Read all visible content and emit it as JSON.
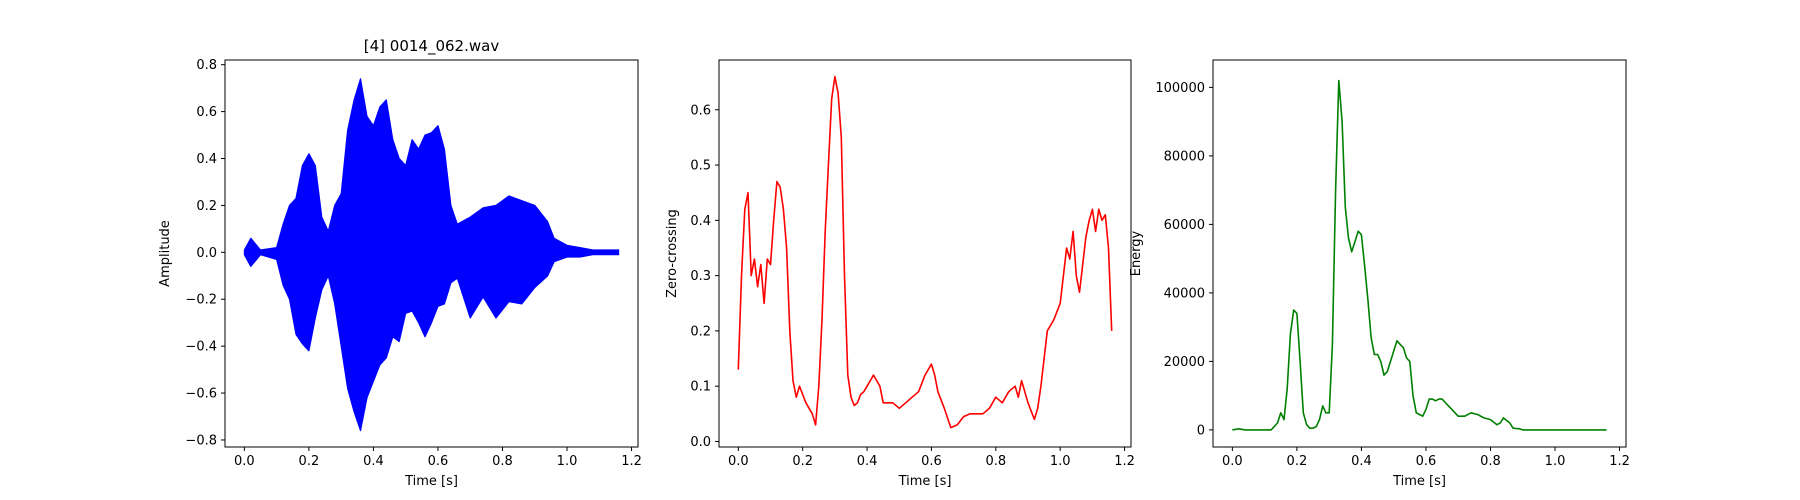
{
  "chart_data": [
    {
      "type": "line",
      "title": "[4] 0014_062.wav",
      "xlabel": "Time [s]",
      "ylabel": "Amplitude",
      "xlim": [
        -0.06,
        1.22
      ],
      "ylim": [
        -0.83,
        0.82
      ],
      "x_ticks": [
        0.0,
        0.2,
        0.4,
        0.6,
        0.8,
        1.0,
        1.2
      ],
      "x_tick_labels": [
        "0.0",
        "0.2",
        "0.4",
        "0.6",
        "0.8",
        "1.0",
        "1.2"
      ],
      "y_ticks": [
        -0.8,
        -0.6,
        -0.4,
        -0.2,
        0.0,
        0.2,
        0.4,
        0.6,
        0.8
      ],
      "y_tick_labels": [
        "−0.8",
        "−0.6",
        "−0.4",
        "−0.2",
        "0.0",
        "0.2",
        "0.4",
        "0.6",
        "0.8"
      ],
      "grid": false,
      "legend": "none",
      "color": "#0000ff",
      "series": [
        {
          "style": "waveform-envelope",
          "x": [
            0.0,
            0.02,
            0.05,
            0.1,
            0.12,
            0.14,
            0.16,
            0.18,
            0.2,
            0.22,
            0.24,
            0.26,
            0.28,
            0.3,
            0.32,
            0.34,
            0.36,
            0.38,
            0.4,
            0.42,
            0.44,
            0.46,
            0.48,
            0.5,
            0.52,
            0.54,
            0.56,
            0.58,
            0.6,
            0.62,
            0.64,
            0.66,
            0.7,
            0.74,
            0.78,
            0.82,
            0.86,
            0.9,
            0.94,
            0.96,
            1.0,
            1.04,
            1.08,
            1.12,
            1.16
          ],
          "upper": [
            0.01,
            0.06,
            0.01,
            0.02,
            0.12,
            0.2,
            0.23,
            0.37,
            0.42,
            0.37,
            0.15,
            0.09,
            0.2,
            0.25,
            0.52,
            0.65,
            0.74,
            0.58,
            0.54,
            0.62,
            0.65,
            0.48,
            0.4,
            0.37,
            0.48,
            0.44,
            0.5,
            0.51,
            0.54,
            0.44,
            0.2,
            0.12,
            0.15,
            0.19,
            0.2,
            0.24,
            0.22,
            0.2,
            0.13,
            0.06,
            0.03,
            0.02,
            0.01,
            0.01,
            0.01
          ],
          "lower": [
            -0.01,
            -0.06,
            -0.01,
            -0.03,
            -0.14,
            -0.2,
            -0.35,
            -0.39,
            -0.42,
            -0.28,
            -0.16,
            -0.1,
            -0.22,
            -0.4,
            -0.58,
            -0.68,
            -0.76,
            -0.62,
            -0.55,
            -0.48,
            -0.45,
            -0.36,
            -0.38,
            -0.26,
            -0.25,
            -0.3,
            -0.36,
            -0.3,
            -0.23,
            -0.22,
            -0.13,
            -0.11,
            -0.28,
            -0.19,
            -0.28,
            -0.21,
            -0.22,
            -0.15,
            -0.1,
            -0.04,
            -0.02,
            -0.02,
            -0.01,
            -0.01,
            -0.01
          ]
        }
      ]
    },
    {
      "type": "line",
      "title": "",
      "xlabel": "Time [s]",
      "ylabel": "Zero-crossing",
      "xlim": [
        -0.06,
        1.22
      ],
      "ylim": [
        -0.01,
        0.69
      ],
      "x_ticks": [
        0.0,
        0.2,
        0.4,
        0.6,
        0.8,
        1.0,
        1.2
      ],
      "x_tick_labels": [
        "0.0",
        "0.2",
        "0.4",
        "0.6",
        "0.8",
        "1.0",
        "1.2"
      ],
      "y_ticks": [
        0.0,
        0.1,
        0.2,
        0.3,
        0.4,
        0.5,
        0.6
      ],
      "y_tick_labels": [
        "0.0",
        "0.1",
        "0.2",
        "0.3",
        "0.4",
        "0.5",
        "0.6"
      ],
      "grid": false,
      "legend": "none",
      "color": "#ff0000",
      "series": [
        {
          "x": [
            0.0,
            0.01,
            0.02,
            0.03,
            0.04,
            0.05,
            0.06,
            0.07,
            0.08,
            0.09,
            0.1,
            0.11,
            0.12,
            0.13,
            0.14,
            0.15,
            0.16,
            0.17,
            0.18,
            0.19,
            0.2,
            0.21,
            0.22,
            0.23,
            0.24,
            0.25,
            0.26,
            0.27,
            0.28,
            0.29,
            0.3,
            0.31,
            0.32,
            0.33,
            0.34,
            0.35,
            0.36,
            0.37,
            0.38,
            0.39,
            0.4,
            0.42,
            0.44,
            0.45,
            0.46,
            0.48,
            0.5,
            0.52,
            0.54,
            0.56,
            0.58,
            0.6,
            0.61,
            0.62,
            0.64,
            0.66,
            0.68,
            0.7,
            0.72,
            0.74,
            0.76,
            0.78,
            0.8,
            0.82,
            0.84,
            0.86,
            0.87,
            0.88,
            0.9,
            0.92,
            0.93,
            0.94,
            0.96,
            0.98,
            1.0,
            1.01,
            1.02,
            1.03,
            1.04,
            1.05,
            1.06,
            1.07,
            1.08,
            1.09,
            1.1,
            1.11,
            1.12,
            1.13,
            1.14,
            1.15,
            1.16
          ],
          "y": [
            0.13,
            0.3,
            0.42,
            0.45,
            0.3,
            0.33,
            0.28,
            0.32,
            0.25,
            0.33,
            0.32,
            0.4,
            0.47,
            0.46,
            0.42,
            0.35,
            0.2,
            0.11,
            0.08,
            0.1,
            0.085,
            0.07,
            0.06,
            0.05,
            0.03,
            0.1,
            0.22,
            0.38,
            0.5,
            0.62,
            0.66,
            0.63,
            0.55,
            0.3,
            0.12,
            0.08,
            0.065,
            0.07,
            0.085,
            0.09,
            0.1,
            0.12,
            0.1,
            0.07,
            0.07,
            0.07,
            0.06,
            0.07,
            0.08,
            0.09,
            0.12,
            0.14,
            0.12,
            0.09,
            0.06,
            0.025,
            0.03,
            0.045,
            0.05,
            0.05,
            0.05,
            0.06,
            0.08,
            0.07,
            0.09,
            0.1,
            0.08,
            0.11,
            0.07,
            0.04,
            0.06,
            0.1,
            0.2,
            0.22,
            0.25,
            0.3,
            0.35,
            0.33,
            0.38,
            0.3,
            0.27,
            0.32,
            0.37,
            0.4,
            0.42,
            0.38,
            0.42,
            0.4,
            0.41,
            0.35,
            0.2
          ]
        }
      ]
    },
    {
      "type": "line",
      "title": "",
      "xlabel": "Time [s]",
      "ylabel": "Energy",
      "xlim": [
        -0.06,
        1.22
      ],
      "ylim": [
        -5000,
        108000
      ],
      "x_ticks": [
        0.0,
        0.2,
        0.4,
        0.6,
        0.8,
        1.0,
        1.2
      ],
      "x_tick_labels": [
        "0.0",
        "0.2",
        "0.4",
        "0.6",
        "0.8",
        "1.0",
        "1.2"
      ],
      "y_ticks": [
        0,
        20000,
        40000,
        60000,
        80000,
        100000
      ],
      "y_tick_labels": [
        "0",
        "20000",
        "40000",
        "60000",
        "80000",
        "100000"
      ],
      "grid": false,
      "legend": "none",
      "color": "#008000",
      "series": [
        {
          "x": [
            0.0,
            0.02,
            0.04,
            0.08,
            0.12,
            0.14,
            0.15,
            0.16,
            0.17,
            0.18,
            0.19,
            0.2,
            0.21,
            0.22,
            0.23,
            0.24,
            0.25,
            0.26,
            0.27,
            0.28,
            0.29,
            0.3,
            0.31,
            0.32,
            0.33,
            0.34,
            0.35,
            0.36,
            0.37,
            0.38,
            0.39,
            0.4,
            0.41,
            0.42,
            0.43,
            0.44,
            0.45,
            0.46,
            0.47,
            0.48,
            0.49,
            0.5,
            0.51,
            0.52,
            0.53,
            0.54,
            0.55,
            0.56,
            0.57,
            0.58,
            0.59,
            0.6,
            0.61,
            0.62,
            0.63,
            0.64,
            0.65,
            0.66,
            0.67,
            0.68,
            0.69,
            0.7,
            0.72,
            0.74,
            0.76,
            0.78,
            0.8,
            0.82,
            0.83,
            0.84,
            0.86,
            0.87,
            0.88,
            0.89,
            0.9,
            0.92,
            0.95,
            1.0,
            1.05,
            1.1,
            1.16
          ],
          "y": [
            0,
            300,
            0,
            0,
            0,
            2000,
            5000,
            3000,
            12000,
            28000,
            35000,
            34000,
            20000,
            5000,
            1500,
            500,
            500,
            1000,
            3000,
            7000,
            5000,
            5000,
            25000,
            70000,
            102000,
            90000,
            65000,
            56000,
            52000,
            55000,
            58000,
            57000,
            48000,
            38000,
            27000,
            22000,
            22000,
            20000,
            16000,
            17000,
            20000,
            23000,
            26000,
            25000,
            24000,
            21000,
            20000,
            10000,
            5000,
            4500,
            4000,
            6000,
            9000,
            9000,
            8500,
            9000,
            9000,
            8000,
            7000,
            6000,
            5000,
            4000,
            4000,
            5000,
            4500,
            3500,
            3000,
            1500,
            2000,
            3500,
            2000,
            500,
            400,
            300,
            0,
            0,
            0,
            0,
            0,
            0,
            0
          ]
        }
      ]
    }
  ]
}
